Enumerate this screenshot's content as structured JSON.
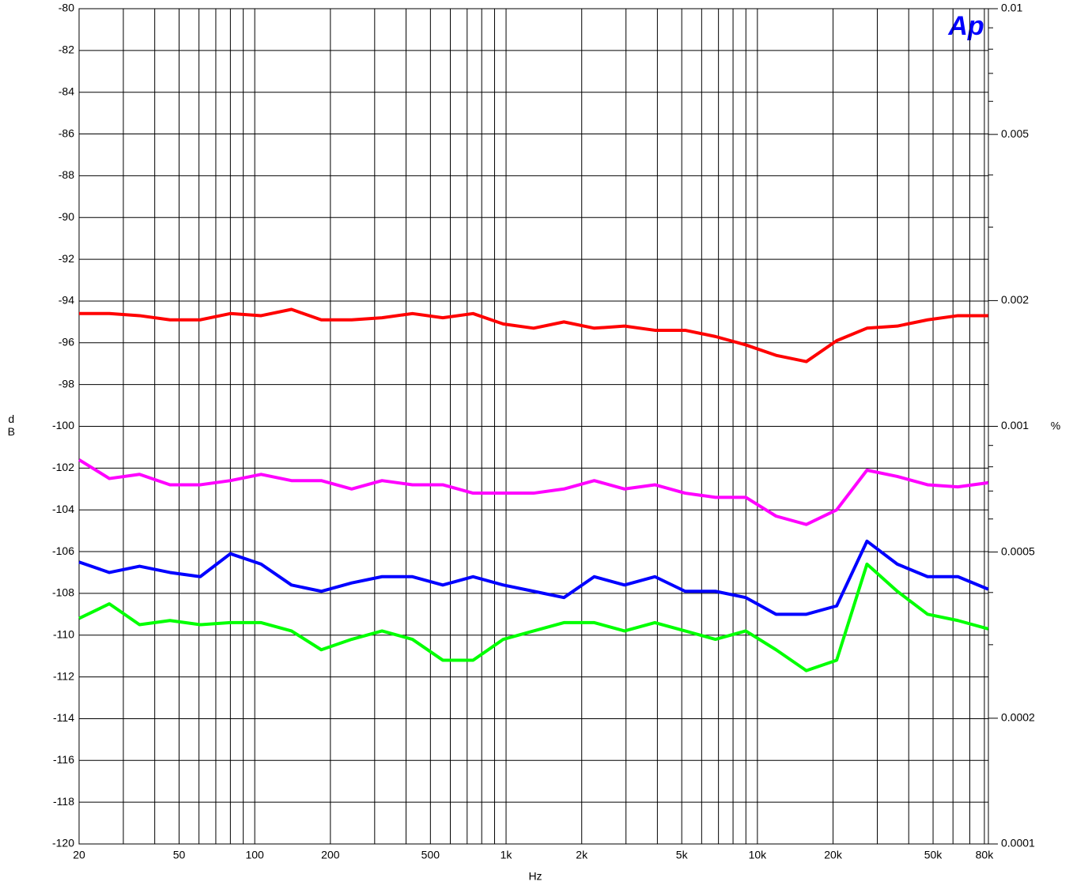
{
  "chart_data": {
    "type": "line",
    "logo": "Ap",
    "x_label": "Hz",
    "y_label": "dB",
    "y2_label": "%",
    "xscale": "log",
    "xlim": [
      20,
      83000
    ],
    "xticks": [
      20,
      50,
      100,
      200,
      500,
      {
        "value": 1000,
        "label": "1k"
      },
      {
        "value": 2000,
        "label": "2k"
      },
      {
        "value": 5000,
        "label": "5k"
      },
      {
        "value": 10000,
        "label": "10k"
      },
      {
        "value": 20000,
        "label": "20k"
      },
      {
        "value": 50000,
        "label": "50k"
      },
      {
        "value": 80000,
        "label": "80k"
      }
    ],
    "x_minor_ticks": [
      30,
      40,
      60,
      70,
      80,
      90,
      300,
      400,
      600,
      700,
      800,
      900,
      3000,
      4000,
      6000,
      7000,
      8000,
      9000,
      30000,
      40000,
      60000,
      70000
    ],
    "ylim": [
      -120,
      -80
    ],
    "yticks": [
      -120,
      -118,
      -116,
      -114,
      -112,
      -110,
      -108,
      -106,
      -104,
      -102,
      -100,
      -98,
      -96,
      -94,
      -92,
      -90,
      -88,
      -86,
      -84,
      -82,
      -80
    ],
    "y2scale": "log",
    "y2lim": [
      0.0001,
      0.01
    ],
    "y2ticks": [
      0.0001,
      0.0002,
      0.0005,
      0.001,
      0.002,
      0.005,
      0.01
    ],
    "y2_minor_ticks": [
      0.0003,
      0.0004,
      0.0006,
      0.0007,
      0.0008,
      0.0009,
      0.003,
      0.004,
      0.006,
      0.007,
      0.008,
      0.009
    ],
    "grid": true,
    "x": [
      20,
      26.4,
      34.8,
      46,
      60.7,
      80,
      106,
      140,
      184,
      243,
      321,
      424,
      560,
      739,
      975,
      1287,
      1699,
      2243,
      2960,
      3908,
      5158,
      6809,
      8988,
      11864,
      15660,
      20671,
      27286,
      36018,
      47544,
      62758,
      82841
    ],
    "series": [
      {
        "color": "#ff0000",
        "values": [
          -94.6,
          -94.6,
          -94.7,
          -94.9,
          -94.9,
          -94.6,
          -94.7,
          -94.4,
          -94.9,
          -94.9,
          -94.8,
          -94.6,
          -94.8,
          -94.6,
          -95.1,
          -95.3,
          -95.0,
          -95.3,
          -95.2,
          -95.4,
          -95.4,
          -95.7,
          -96.1,
          -96.6,
          -96.9,
          -95.9,
          -95.3,
          -95.2,
          -94.9,
          -94.7,
          -94.7
        ]
      },
      {
        "color": "#ff00ff",
        "values": [
          -101.6,
          -102.5,
          -102.3,
          -102.8,
          -102.8,
          -102.6,
          -102.3,
          -102.6,
          -102.6,
          -103.0,
          -102.6,
          -102.8,
          -102.8,
          -103.2,
          -103.2,
          -103.2,
          -103.0,
          -102.6,
          -103.0,
          -102.8,
          -103.2,
          -103.4,
          -103.4,
          -104.3,
          -104.7,
          -104.0,
          -102.1,
          -102.4,
          -102.8,
          -102.9,
          -102.7
        ]
      },
      {
        "color": "#0000ff",
        "values": [
          -106.5,
          -107.0,
          -106.7,
          -107.0,
          -107.2,
          -106.1,
          -106.6,
          -107.6,
          -107.9,
          -107.5,
          -107.2,
          -107.2,
          -107.6,
          -107.2,
          -107.6,
          -107.9,
          -108.2,
          -107.2,
          -107.6,
          -107.2,
          -107.9,
          -107.9,
          -108.2,
          -109.0,
          -109.0,
          -108.6,
          -105.5,
          -106.6,
          -107.2,
          -107.2,
          -107.8
        ]
      },
      {
        "color": "#00ff00",
        "values": [
          -109.2,
          -108.5,
          -109.5,
          -109.3,
          -109.5,
          -109.4,
          -109.4,
          -109.8,
          -110.7,
          -110.2,
          -109.8,
          -110.2,
          -111.2,
          -111.2,
          -110.2,
          -109.8,
          -109.4,
          -109.4,
          -109.8,
          -109.4,
          -109.8,
          -110.2,
          -109.8,
          -110.7,
          -111.7,
          -111.2,
          -106.6,
          -107.9,
          -109.0,
          -109.3,
          -109.7
        ]
      }
    ]
  }
}
